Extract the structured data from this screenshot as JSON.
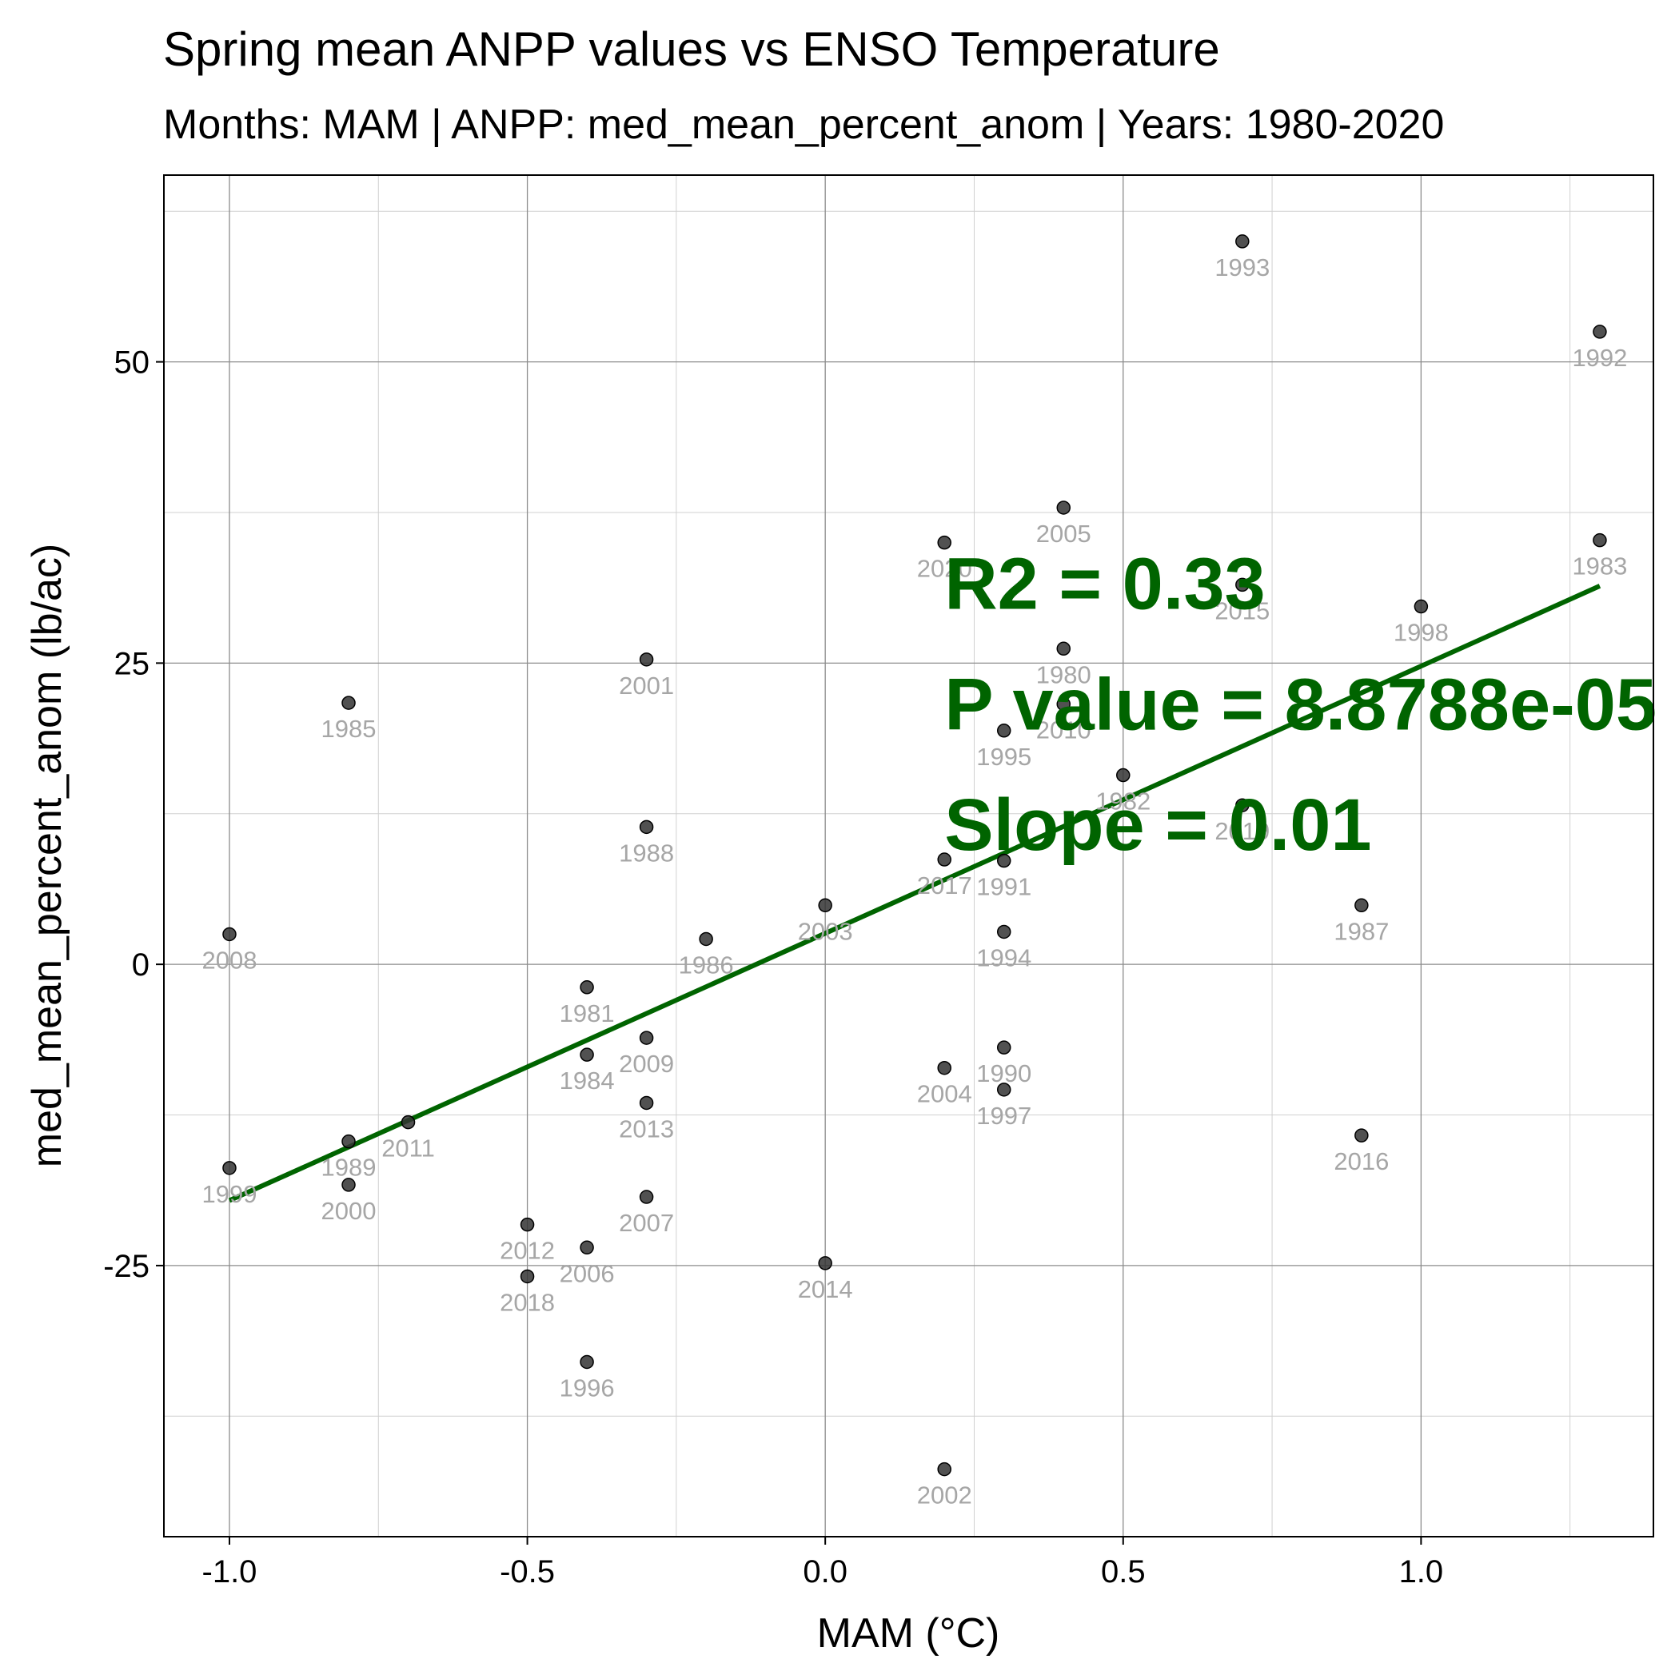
{
  "chart_data": {
    "type": "scatter",
    "title": "Spring mean ANPP values vs ENSO Temperature",
    "subtitle": "Months: MAM | ANPP: med_mean_percent_anom | Years: 1980-2020",
    "xlabel": "MAM (°C)",
    "ylabel": "med_mean_percent_anom (lb/ac)",
    "xlim": [
      -1.11,
      1.39
    ],
    "ylim": [
      -47.5,
      65.5
    ],
    "x_ticks": [
      -1.0,
      -0.5,
      0.0,
      0.5,
      1.0
    ],
    "x_tick_labels": [
      "-1.0",
      "-0.5",
      "0.0",
      "0.5",
      "1.0"
    ],
    "y_ticks": [
      -25,
      0,
      25,
      50
    ],
    "y_tick_labels": [
      "-25",
      "0",
      "25",
      "50"
    ],
    "x_minor_grid": [
      -0.75,
      -0.25,
      0.25,
      0.75,
      1.25
    ],
    "y_minor_grid": [
      -37.5,
      -12.5,
      12.5,
      37.5,
      62.5
    ],
    "grid": true,
    "point_color": "#333333",
    "label_color": "#a6a6a6",
    "fit_color": "#006400",
    "points": [
      {
        "year": "1980",
        "x": 0.4,
        "y": 26.2
      },
      {
        "year": "1981",
        "x": -0.4,
        "y": -1.9
      },
      {
        "year": "1982",
        "x": 0.5,
        "y": 15.7
      },
      {
        "year": "1983",
        "x": 1.3,
        "y": 35.2
      },
      {
        "year": "1984",
        "x": -0.4,
        "y": -7.5
      },
      {
        "year": "1985",
        "x": -0.8,
        "y": 21.7
      },
      {
        "year": "1986",
        "x": -0.2,
        "y": 2.1
      },
      {
        "year": "1987",
        "x": 0.9,
        "y": 4.9
      },
      {
        "year": "1988",
        "x": -0.3,
        "y": 11.4
      },
      {
        "year": "1989",
        "x": -0.8,
        "y": -14.7
      },
      {
        "year": "1990",
        "x": 0.3,
        "y": -6.9
      },
      {
        "year": "1991",
        "x": 0.3,
        "y": 8.6
      },
      {
        "year": "1992",
        "x": 1.3,
        "y": 52.5
      },
      {
        "year": "1993",
        "x": 0.7,
        "y": 60.0
      },
      {
        "year": "1994",
        "x": 0.3,
        "y": 2.7
      },
      {
        "year": "1995",
        "x": 0.3,
        "y": 19.4
      },
      {
        "year": "1996",
        "x": -0.4,
        "y": -33.0
      },
      {
        "year": "1997",
        "x": 0.3,
        "y": -10.4
      },
      {
        "year": "1998",
        "x": 1.0,
        "y": 29.7
      },
      {
        "year": "1999",
        "x": -1.0,
        "y": -16.9
      },
      {
        "year": "2000",
        "x": -0.8,
        "y": -18.3
      },
      {
        "year": "2001",
        "x": -0.3,
        "y": 25.3
      },
      {
        "year": "2002",
        "x": 0.2,
        "y": -41.9
      },
      {
        "year": "2003",
        "x": 0.0,
        "y": 4.9
      },
      {
        "year": "2004",
        "x": 0.2,
        "y": -8.6
      },
      {
        "year": "2005",
        "x": 0.4,
        "y": 37.9
      },
      {
        "year": "2006",
        "x": -0.4,
        "y": -23.5
      },
      {
        "year": "2007",
        "x": -0.3,
        "y": -19.3
      },
      {
        "year": "2008",
        "x": -1.0,
        "y": 2.5
      },
      {
        "year": "2009",
        "x": -0.3,
        "y": -6.1
      },
      {
        "year": "2010",
        "x": 0.4,
        "y": 21.6
      },
      {
        "year": "2011",
        "x": -0.7,
        "y": -13.1
      },
      {
        "year": "2012",
        "x": -0.5,
        "y": -21.6
      },
      {
        "year": "2013",
        "x": -0.3,
        "y": -11.5
      },
      {
        "year": "2014",
        "x": 0.0,
        "y": -24.8
      },
      {
        "year": "2015",
        "x": 0.7,
        "y": 31.5
      },
      {
        "year": "2016",
        "x": 0.9,
        "y": -14.2
      },
      {
        "year": "2017",
        "x": 0.2,
        "y": 8.7
      },
      {
        "year": "2018",
        "x": -0.5,
        "y": -25.9
      },
      {
        "year": "2019",
        "x": 0.7,
        "y": 13.2
      },
      {
        "year": "2020",
        "x": 0.2,
        "y": 35.0
      }
    ],
    "fit_line": {
      "x": [
        -1.0,
        1.3
      ],
      "y": [
        -19.6,
        31.4
      ]
    },
    "annotations": [
      {
        "text": "R2 = 0.33",
        "x": 0.2,
        "y": 29.5
      },
      {
        "text": "P value = 8.8788e-05",
        "x": 0.2,
        "y": 19.5
      },
      {
        "text": "Slope = 0.01",
        "x": 0.2,
        "y": 9.5
      }
    ]
  }
}
